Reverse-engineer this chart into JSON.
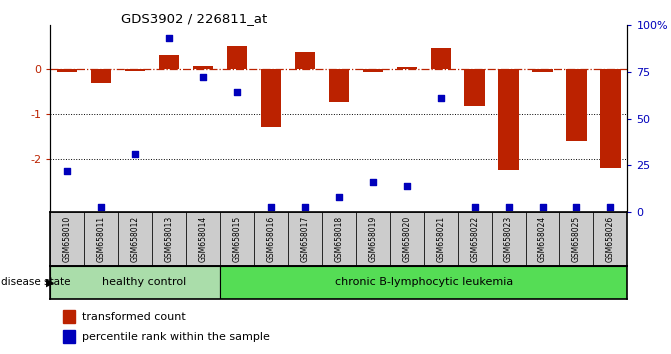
{
  "title": "GDS3902 / 226811_at",
  "samples": [
    "GSM658010",
    "GSM658011",
    "GSM658012",
    "GSM658013",
    "GSM658014",
    "GSM658015",
    "GSM658016",
    "GSM658017",
    "GSM658018",
    "GSM658019",
    "GSM658020",
    "GSM658021",
    "GSM658022",
    "GSM658023",
    "GSM658024",
    "GSM658025",
    "GSM658026"
  ],
  "red_values": [
    -0.05,
    -0.3,
    -0.03,
    0.33,
    0.07,
    0.53,
    -1.28,
    0.38,
    -0.72,
    -0.05,
    0.05,
    0.47,
    -0.82,
    -2.25,
    -0.05,
    -1.6,
    -2.2
  ],
  "blue_percentiles": [
    22,
    3,
    31,
    93,
    72,
    64,
    3,
    3,
    8,
    16,
    14,
    61,
    3,
    3,
    3,
    3,
    3
  ],
  "healthy_count": 5,
  "ylim_left": [
    -3.2,
    1.0
  ],
  "ylim_right": [
    0,
    100
  ],
  "bar_color": "#bb2200",
  "dot_color": "#0000bb",
  "healthy_color": "#aaddaa",
  "leukemia_color": "#55dd55",
  "label_area_bg": "#cccccc",
  "zero_line_color": "#bb2200",
  "healthy_label": "healthy control",
  "leukemia_label": "chronic B-lymphocytic leukemia",
  "disease_state_label": "disease state",
  "legend_red": "transformed count",
  "legend_blue": "percentile rank within the sample"
}
